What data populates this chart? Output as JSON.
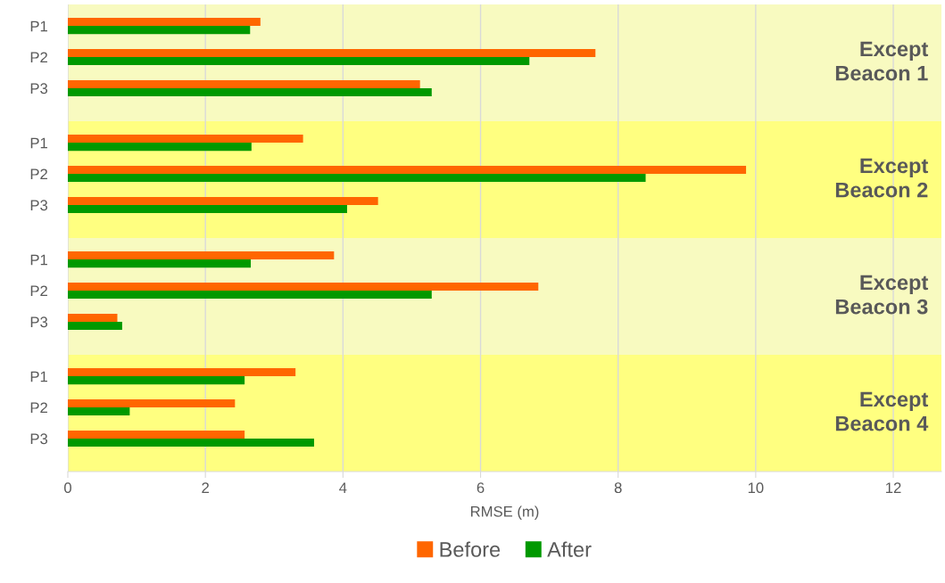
{
  "chart_data": [
    {
      "type": "bar",
      "orientation": "horizontal",
      "categories": [
        "P1",
        "P2",
        "P3"
      ],
      "series": [
        {
          "name": "Before",
          "color": "#ff6600",
          "values": [
            2.8,
            7.67,
            5.12
          ]
        },
        {
          "name": "After",
          "color": "#009900",
          "values": [
            2.65,
            6.71,
            5.29
          ]
        }
      ],
      "xlim": [
        0,
        12.7
      ],
      "xticks": [
        0,
        2,
        4,
        6,
        8,
        10,
        12
      ],
      "tick_labels": "y",
      "grid": "x",
      "legend": "bottom",
      "bands": [
        {
          "axis": "x",
          "from": 0,
          "to": 12.7,
          "label": "Except\nBeacon 1",
          "color": "#f8fac0"
        }
      ]
    },
    {
      "type": "bar",
      "orientation": "horizontal",
      "categories": [
        "P1",
        "P2",
        "P3"
      ],
      "series": [
        {
          "color": "#ff6600",
          "values": [
            3.42,
            9.86,
            4.51
          ]
        },
        {
          "color": "#009900",
          "values": [
            2.67,
            8.4,
            4.06
          ]
        }
      ],
      "xlim": [
        0,
        12.7
      ],
      "xticks": [
        0,
        2,
        4,
        6,
        8,
        10,
        12
      ],
      "tick_labels": "y",
      "grid": "x",
      "bands": [
        {
          "axis": "x",
          "from": 0,
          "to": 12.7,
          "label": "Except\nBeacon 2",
          "color": "#ffff80"
        }
      ]
    },
    {
      "type": "bar",
      "orientation": "horizontal",
      "categories": [
        "P1",
        "P2",
        "P3"
      ],
      "series": [
        {
          "color": "#ff6600",
          "values": [
            3.87,
            6.84,
            0.72
          ]
        },
        {
          "color": "#009900",
          "values": [
            2.66,
            5.29,
            0.79
          ]
        }
      ],
      "xlim": [
        0,
        12.7
      ],
      "xticks": [
        0,
        2,
        4,
        6,
        8,
        10,
        12
      ],
      "tick_labels": "y",
      "grid": "x",
      "bands": [
        {
          "axis": "x",
          "from": 0,
          "to": 12.7,
          "label": "Except\nBeacon 3",
          "color": "#f8fac0"
        }
      ]
    },
    {
      "type": "bar",
      "orientation": "horizontal",
      "categories": [
        "P1",
        "P2",
        "P3"
      ],
      "series": [
        {
          "color": "#ff6600",
          "values": [
            3.31,
            2.43,
            2.57
          ]
        },
        {
          "color": "#009900",
          "values": [
            2.57,
            0.9,
            3.58
          ]
        }
      ],
      "xlim": [
        0,
        12.7
      ],
      "xticks": [
        0,
        2,
        4,
        6,
        8,
        10,
        12
      ],
      "grid": "x",
      "xlabel": "RMSE (m)",
      "bands": [
        {
          "axis": "x",
          "from": 0,
          "to": 12.7,
          "label": "Except\nBeacon 4",
          "color": "#ffff80"
        }
      ]
    }
  ]
}
